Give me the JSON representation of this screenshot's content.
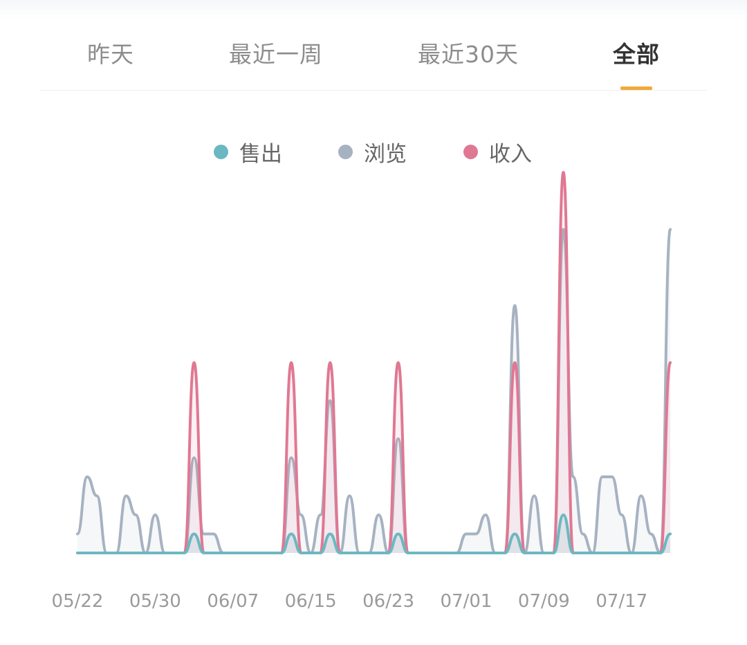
{
  "tabs": [
    {
      "label": "昨天",
      "active": false
    },
    {
      "label": "最近一周",
      "active": false
    },
    {
      "label": "最近30天",
      "active": false
    },
    {
      "label": "全部",
      "active": true
    }
  ],
  "colors": {
    "accent": "#f2a93b",
    "sold": "#6cb8c1",
    "views": "#a7b2c1",
    "income": "#e07893"
  },
  "chart_data": {
    "type": "area",
    "legend_position": "top-center",
    "grid": false,
    "x_tick_labels": [
      "05/22",
      "05/30",
      "06/07",
      "06/15",
      "06/23",
      "07/01",
      "07/09",
      "07/17"
    ],
    "x": [
      "05/22",
      "05/23",
      "05/24",
      "05/25",
      "05/26",
      "05/27",
      "05/28",
      "05/29",
      "05/30",
      "05/31",
      "06/01",
      "06/02",
      "06/03",
      "06/04",
      "06/05",
      "06/06",
      "06/07",
      "06/08",
      "06/09",
      "06/10",
      "06/11",
      "06/12",
      "06/13",
      "06/14",
      "06/15",
      "06/16",
      "06/17",
      "06/18",
      "06/19",
      "06/20",
      "06/21",
      "06/22",
      "06/23",
      "06/24",
      "06/25",
      "06/26",
      "06/27",
      "06/28",
      "06/29",
      "06/30",
      "07/01",
      "07/02",
      "07/03",
      "07/04",
      "07/05",
      "07/06",
      "07/07",
      "07/08",
      "07/09",
      "07/10",
      "07/11",
      "07/12",
      "07/13",
      "07/14",
      "07/15",
      "07/16",
      "07/17",
      "07/18",
      "07/19",
      "07/20",
      "07/21",
      "07/22"
    ],
    "ylim": [
      0,
      5
    ],
    "series": [
      {
        "name": "售出",
        "color_key": "sold",
        "values": [
          0,
          0,
          0,
          0,
          0,
          0,
          0,
          0,
          0,
          0,
          0,
          0,
          0.25,
          0,
          0,
          0,
          0,
          0,
          0,
          0,
          0,
          0,
          0.25,
          0,
          0,
          0,
          0.25,
          0,
          0,
          0,
          0,
          0,
          0,
          0.25,
          0,
          0,
          0,
          0,
          0,
          0,
          0,
          0,
          0,
          0,
          0,
          0.25,
          0,
          0,
          0,
          0,
          0.5,
          0,
          0,
          0,
          0,
          0,
          0,
          0,
          0,
          0,
          0,
          0.25
        ]
      },
      {
        "name": "浏览",
        "color_key": "views",
        "values": [
          0.25,
          1,
          0.75,
          0,
          0,
          0.75,
          0.5,
          0,
          0.5,
          0,
          0,
          0,
          1.25,
          0.25,
          0.25,
          0,
          0,
          0,
          0,
          0,
          0,
          0,
          1.25,
          0.5,
          0,
          0.5,
          2,
          0,
          0.75,
          0,
          0,
          0.5,
          0,
          1.5,
          0,
          0,
          0,
          0,
          0,
          0,
          0.25,
          0.25,
          0.5,
          0,
          0,
          3.25,
          0,
          0.75,
          0,
          0,
          4.25,
          1,
          0.25,
          0,
          1,
          1,
          0.5,
          0,
          0.75,
          0.25,
          0,
          4.25
        ]
      },
      {
        "name": "收入",
        "color_key": "income",
        "values": [
          0,
          0,
          0,
          0,
          0,
          0,
          0,
          0,
          0,
          0,
          0,
          0,
          2.5,
          0,
          0,
          0,
          0,
          0,
          0,
          0,
          0,
          0,
          2.5,
          0,
          0,
          0,
          2.5,
          0,
          0,
          0,
          0,
          0,
          0,
          2.5,
          0,
          0,
          0,
          0,
          0,
          0,
          0,
          0,
          0,
          0,
          0,
          2.5,
          0,
          0,
          0,
          0,
          5,
          0,
          0,
          0,
          0,
          0,
          0,
          0,
          0,
          0,
          0,
          2.5
        ]
      }
    ]
  }
}
